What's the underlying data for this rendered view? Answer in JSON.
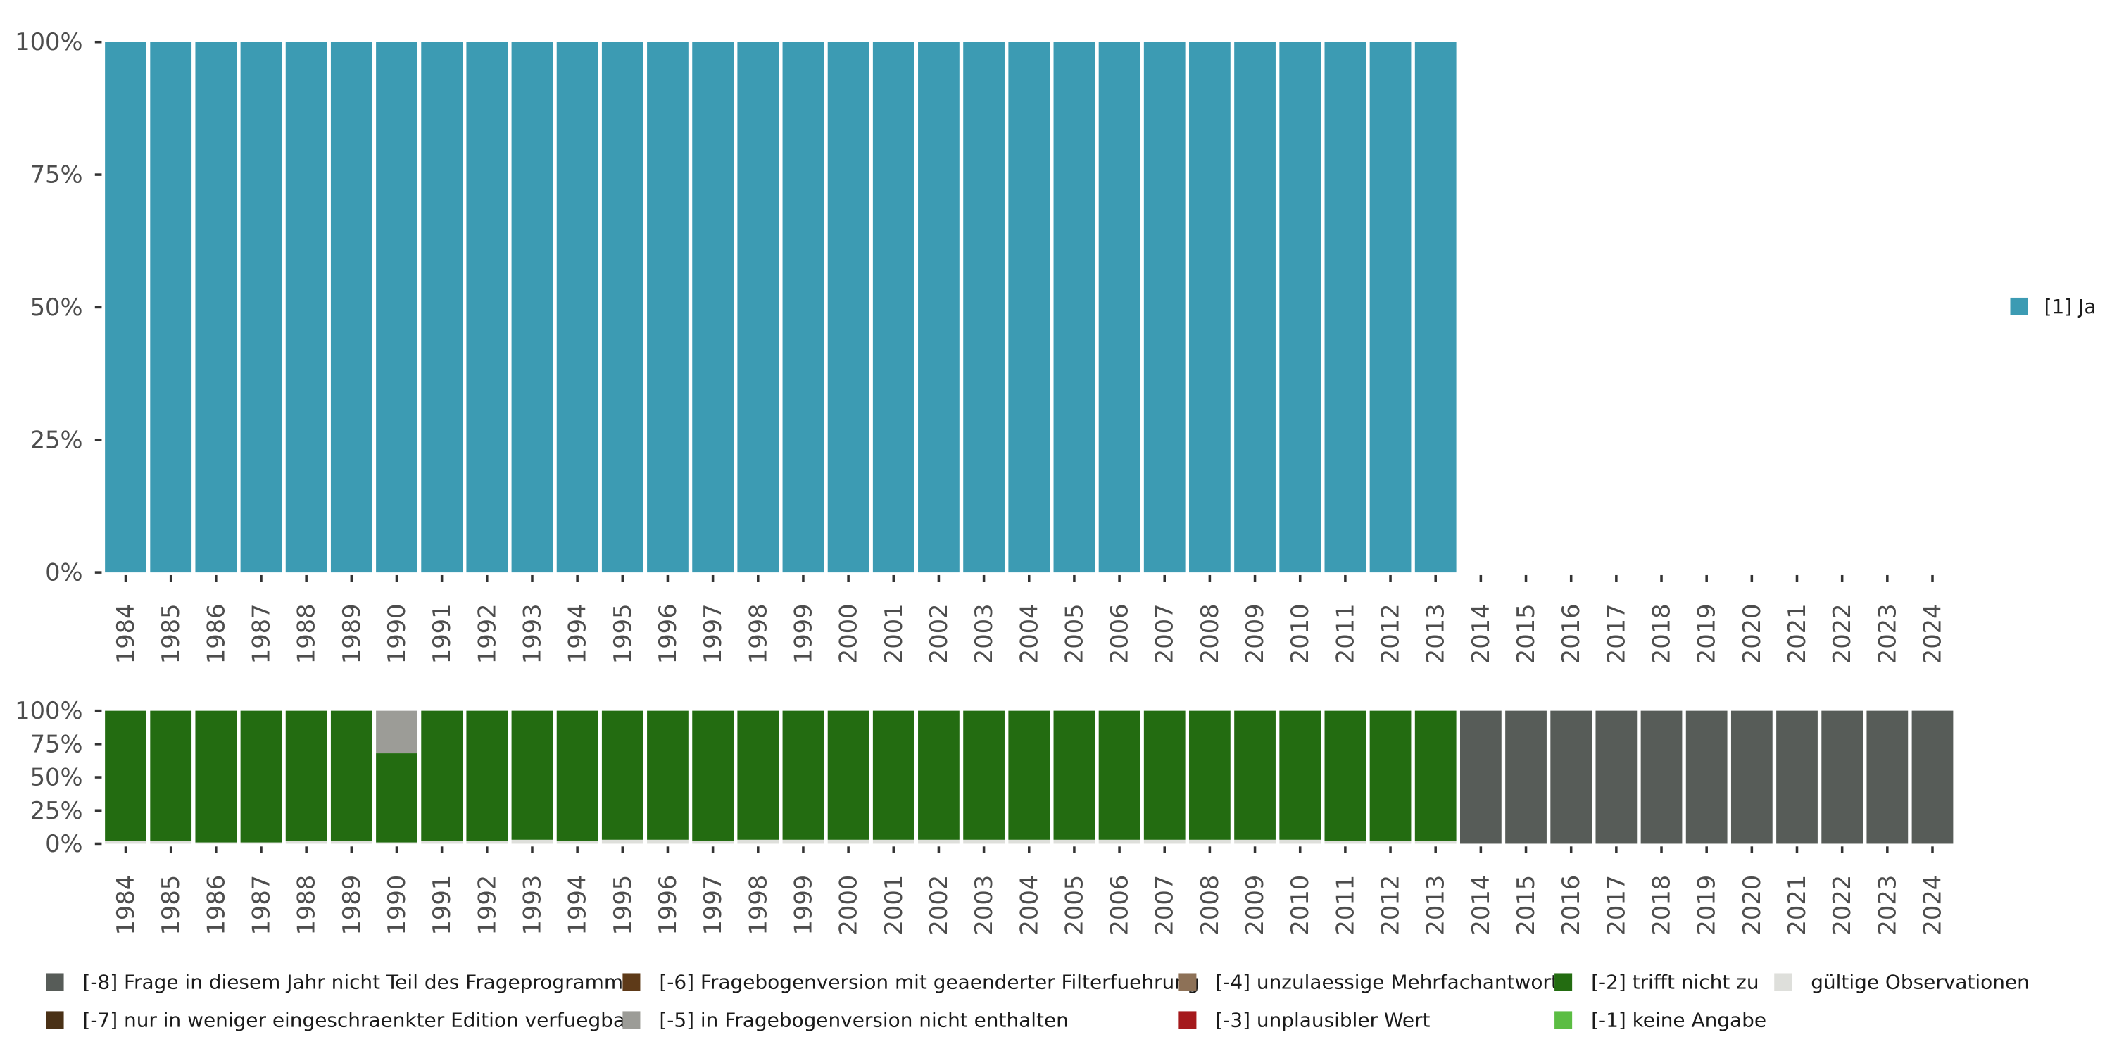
{
  "chart_data": [
    {
      "type": "bar",
      "stacked": true,
      "percent_scale": true,
      "categories": [
        "1984",
        "1985",
        "1986",
        "1987",
        "1988",
        "1989",
        "1990",
        "1991",
        "1992",
        "1993",
        "1994",
        "1995",
        "1996",
        "1997",
        "1998",
        "1999",
        "2000",
        "2001",
        "2002",
        "2003",
        "2004",
        "2005",
        "2006",
        "2007",
        "2008",
        "2009",
        "2010",
        "2011",
        "2012",
        "2013",
        "2014",
        "2015",
        "2016",
        "2017",
        "2018",
        "2019",
        "2020",
        "2021",
        "2022",
        "2023",
        "2024"
      ],
      "y_ticks": [
        "0%",
        "25%",
        "50%",
        "75%",
        "100%"
      ],
      "ylim": [
        0,
        1
      ],
      "series": [
        {
          "name": "[1] Ja",
          "color": "#3C9BB3",
          "values": [
            1,
            1,
            1,
            1,
            1,
            1,
            1,
            1,
            1,
            1,
            1,
            1,
            1,
            1,
            1,
            1,
            1,
            1,
            1,
            1,
            1,
            1,
            1,
            1,
            1,
            1,
            1,
            1,
            1,
            1,
            0,
            0,
            0,
            0,
            0,
            0,
            0,
            0,
            0,
            0,
            0
          ]
        }
      ],
      "legend": {
        "position": "right",
        "items": [
          {
            "label": "[1] Ja",
            "color": "#3C9BB3"
          }
        ]
      }
    },
    {
      "type": "bar",
      "stacked": true,
      "percent_scale": true,
      "categories": [
        "1984",
        "1985",
        "1986",
        "1987",
        "1988",
        "1989",
        "1990",
        "1991",
        "1992",
        "1993",
        "1994",
        "1995",
        "1996",
        "1997",
        "1998",
        "1999",
        "2000",
        "2001",
        "2002",
        "2003",
        "2004",
        "2005",
        "2006",
        "2007",
        "2008",
        "2009",
        "2010",
        "2011",
        "2012",
        "2013",
        "2014",
        "2015",
        "2016",
        "2017",
        "2018",
        "2019",
        "2020",
        "2021",
        "2022",
        "2023",
        "2024"
      ],
      "y_ticks": [
        "0%",
        "25%",
        "50%",
        "75%",
        "100%"
      ],
      "ylim": [
        0,
        1
      ],
      "series": [
        {
          "name": "gültige Observationen",
          "color": "#DEDFDB",
          "values": [
            0.02,
            0.02,
            0.01,
            0.01,
            0.02,
            0.02,
            0.01,
            0.02,
            0.02,
            0.03,
            0.02,
            0.03,
            0.03,
            0.02,
            0.03,
            0.03,
            0.03,
            0.03,
            0.03,
            0.03,
            0.03,
            0.03,
            0.03,
            0.03,
            0.03,
            0.03,
            0.03,
            0.02,
            0.02,
            0.02,
            0,
            0,
            0,
            0,
            0,
            0,
            0,
            0,
            0,
            0,
            0
          ]
        },
        {
          "name": "[-2] trifft nicht zu",
          "color": "#236C11",
          "values": [
            0.98,
            0.98,
            0.99,
            0.99,
            0.98,
            0.98,
            0.67,
            0.98,
            0.98,
            0.97,
            0.98,
            0.97,
            0.97,
            0.98,
            0.97,
            0.97,
            0.97,
            0.97,
            0.97,
            0.97,
            0.97,
            0.97,
            0.97,
            0.97,
            0.97,
            0.97,
            0.97,
            0.98,
            0.98,
            0.98,
            0,
            0,
            0,
            0,
            0,
            0,
            0,
            0,
            0,
            0,
            0
          ]
        },
        {
          "name": "[-5] in Fragebogenversion nicht enthalten",
          "color": "#9C9C97",
          "values": [
            0,
            0,
            0,
            0,
            0,
            0,
            0.32,
            0,
            0,
            0,
            0,
            0,
            0,
            0,
            0,
            0,
            0,
            0,
            0,
            0,
            0,
            0,
            0,
            0,
            0,
            0,
            0,
            0,
            0,
            0,
            0,
            0,
            0,
            0,
            0,
            0,
            0,
            0,
            0,
            0,
            0
          ]
        },
        {
          "name": "[-8] Frage in diesem Jahr nicht Teil des Frageprogramms",
          "color": "#575C58",
          "values": [
            0,
            0,
            0,
            0,
            0,
            0,
            0,
            0,
            0,
            0,
            0,
            0,
            0,
            0,
            0,
            0,
            0,
            0,
            0,
            0,
            0,
            0,
            0,
            0,
            0,
            0,
            0,
            0,
            0,
            0,
            1,
            1,
            1,
            1,
            1,
            1,
            1,
            1,
            1,
            1,
            1
          ]
        }
      ],
      "legend": {
        "position": "bottom",
        "items": [
          {
            "label": "[-8] Frage in diesem Jahr nicht Teil des Frageprogramms",
            "color": "#575C58"
          },
          {
            "label": "[-7] nur in weniger eingeschraenkter Edition verfuegbar",
            "color": "#4A3116"
          },
          {
            "label": "[-6] Fragebogenversion mit geaenderter Filterfuehrung",
            "color": "#5E3A18"
          },
          {
            "label": "[-5] in Fragebogenversion nicht enthalten",
            "color": "#9C9C97"
          },
          {
            "label": "[-4] unzulaessige Mehrfachantwort",
            "color": "#8D7157"
          },
          {
            "label": "[-3] unplausibler Wert",
            "color": "#A5191C"
          },
          {
            "label": "[-2] trifft nicht zu",
            "color": "#236C11"
          },
          {
            "label": "[-1] keine Angabe",
            "color": "#5BBD43"
          },
          {
            "label": "gültige Observationen",
            "color": "#DEDFDB"
          }
        ]
      }
    }
  ]
}
